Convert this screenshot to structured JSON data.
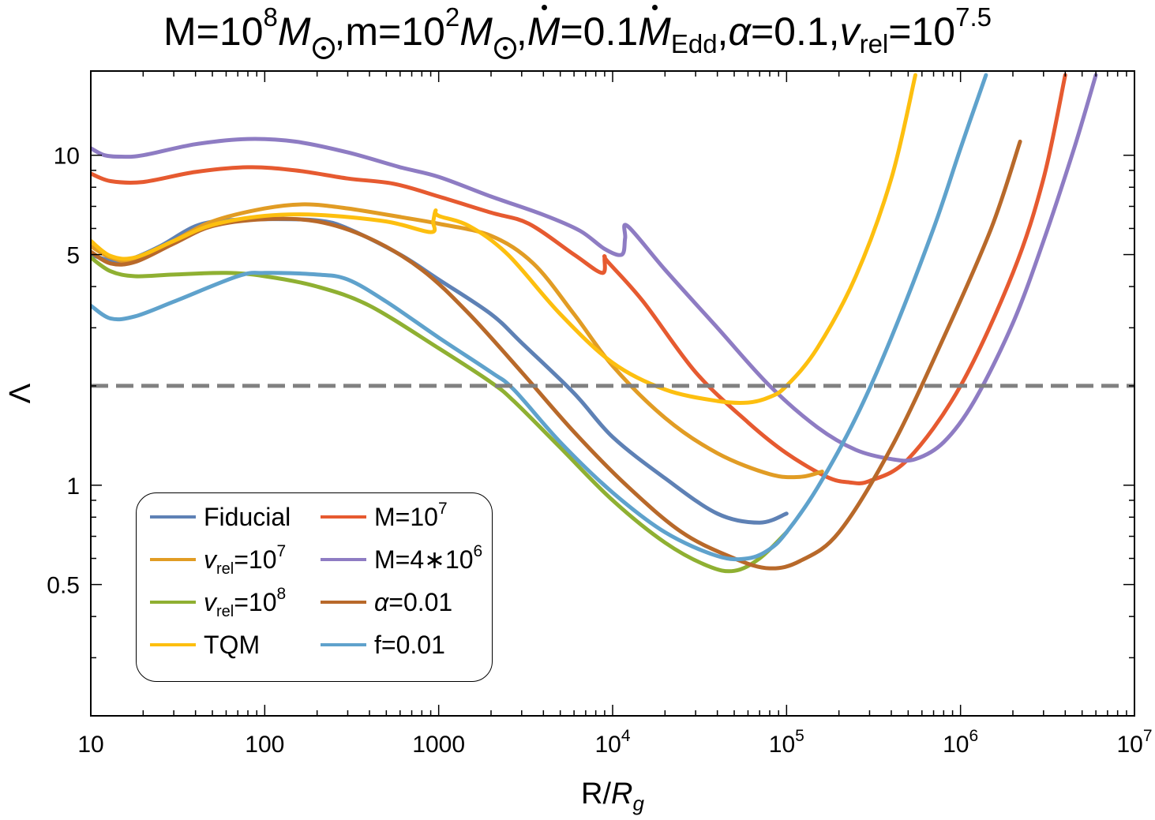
{
  "chart_data": {
    "type": "line",
    "title": "M=10^8 M_⊙, m=10^2 M_⊙, Ṁ=0.1 Ṁ_Edd, α=0.1, v_rel=10^7.5",
    "title_parts": {
      "M_label": "M=10",
      "M_exp": "8",
      "M_unit": "M",
      "m_label": ",m=10",
      "m_exp": "2",
      "m_unit": "M",
      "mdot_label": "M",
      "mdot_eq": "=0.1",
      "mdot_unit": "M",
      "mdot_sub": "Edd",
      "alpha_label": "α",
      "alpha_eq": "=0.1,",
      "v_label": "v",
      "v_sub": "rel",
      "v_eq": "=10",
      "v_exp": "7.5"
    },
    "xlabel": "R/R_g",
    "xlabel_parts": {
      "main": "R/",
      "italic": "R",
      "sub": "g"
    },
    "ylabel": "Λ",
    "xscale": "log",
    "yscale": "log",
    "xlim": [
      10,
      10000000
    ],
    "ylim": [
      0.2,
      18
    ],
    "x_ticks": [
      {
        "value": 10,
        "label": "10"
      },
      {
        "value": 100,
        "label": "100"
      },
      {
        "value": 1000,
        "label": "1000"
      },
      {
        "value": 10000,
        "base": "10",
        "exp": "4"
      },
      {
        "value": 100000,
        "base": "10",
        "exp": "5"
      },
      {
        "value": 1000000,
        "base": "10",
        "exp": "6"
      },
      {
        "value": 10000000,
        "base": "10",
        "exp": "7"
      }
    ],
    "y_ticks": [
      {
        "value": 0.5,
        "label": "0.5"
      },
      {
        "value": 1,
        "label": "1"
      },
      {
        "value": 5,
        "label": "5"
      },
      {
        "value": 10,
        "label": "10"
      }
    ],
    "reference_line": {
      "y": 2,
      "style": "dashed",
      "color": "#808080"
    },
    "grid": false,
    "legend_position": "lower-left",
    "series": [
      {
        "key": "fiducial",
        "name": "Fiducial",
        "color": "#5e81b5",
        "x": [
          10,
          13,
          17,
          25,
          40,
          60,
          100,
          200,
          300,
          600,
          1000,
          2000,
          3000,
          6000,
          10000,
          20000,
          40000,
          70000,
          100000
        ],
        "y": [
          5.0,
          4.8,
          4.85,
          5.3,
          6.1,
          6.35,
          6.4,
          6.35,
          6.0,
          5.0,
          4.2,
          3.3,
          2.7,
          1.9,
          1.4,
          1.05,
          0.82,
          0.77,
          0.82
        ]
      },
      {
        "key": "m1e7",
        "name": "M=10^7",
        "label_main": "M=10",
        "label_exp": "7",
        "color": "#e65a30",
        "x": [
          10,
          13,
          20,
          40,
          80,
          150,
          300,
          550,
          1000,
          2000,
          3300,
          6000,
          8700,
          9000,
          9400,
          15000,
          30000,
          60000,
          100000,
          170000,
          230000,
          300000,
          500000,
          1000000,
          2000000,
          3000000,
          4000000
        ],
        "y": [
          8.8,
          8.35,
          8.3,
          8.9,
          9.2,
          9.0,
          8.5,
          8.2,
          7.5,
          6.7,
          6.2,
          5.0,
          4.4,
          4.9,
          4.75,
          3.6,
          2.2,
          1.55,
          1.25,
          1.06,
          1.02,
          1.03,
          1.2,
          2.0,
          4.4,
          8.5,
          17.5
        ]
      },
      {
        "key": "vrel1e7",
        "name": "v_rel=10^7",
        "label_var": "v",
        "label_sub": "rel",
        "label_eq": "=10",
        "label_exp": "7",
        "color": "#e19c24",
        "x": [
          10,
          13,
          18,
          30,
          50,
          100,
          170,
          300,
          600,
          1000,
          2000,
          3500,
          6000,
          10000,
          20000,
          40000,
          80000,
          120000,
          160000
        ],
        "y": [
          5.3,
          4.9,
          4.8,
          5.5,
          6.3,
          6.9,
          7.1,
          6.9,
          6.5,
          6.2,
          5.7,
          4.7,
          3.3,
          2.3,
          1.6,
          1.25,
          1.08,
          1.06,
          1.1
        ]
      },
      {
        "key": "m4e6",
        "name": "M=4*10^6",
        "label_main": "M=4∗10",
        "label_exp": "6",
        "color": "#8e7cc3",
        "x": [
          10,
          12,
          15,
          20,
          40,
          80,
          150,
          300,
          600,
          1000,
          2000,
          4000,
          6500,
          9000,
          11300,
          11800,
          12200,
          20000,
          40000,
          80000,
          150000,
          250000,
          400000,
          550000,
          800000,
          1200000,
          2000000,
          3000000,
          4500000,
          6000000
        ],
        "y": [
          10.5,
          10.0,
          9.9,
          10.0,
          10.8,
          11.2,
          11.0,
          10.2,
          9.2,
          8.6,
          7.5,
          6.6,
          5.9,
          5.2,
          5.0,
          5.6,
          6.1,
          4.5,
          3.0,
          2.0,
          1.5,
          1.28,
          1.2,
          1.2,
          1.35,
          1.8,
          3.1,
          5.5,
          10.5,
          17.5
        ]
      },
      {
        "key": "vrel1e8",
        "name": "v_rel=10^8",
        "label_var": "v",
        "label_sub": "rel",
        "label_eq": "=10",
        "label_exp": "8",
        "color": "#8fb032",
        "x": [
          10,
          13,
          18,
          30,
          60,
          100,
          200,
          400,
          1000,
          2000,
          2700,
          5000,
          10000,
          20000,
          35000,
          50000,
          70000,
          100000
        ],
        "y": [
          4.9,
          4.45,
          4.3,
          4.35,
          4.4,
          4.3,
          4.0,
          3.5,
          2.6,
          2.05,
          1.8,
          1.3,
          0.9,
          0.67,
          0.57,
          0.55,
          0.6,
          0.72
        ]
      },
      {
        "key": "alpha001",
        "name": "α=0.01",
        "label_var": "α",
        "label_eq": "=0.01",
        "color": "#b8692a",
        "x": [
          10,
          13,
          18,
          30,
          50,
          100,
          200,
          400,
          800,
          1500,
          3000,
          6000,
          12000,
          25000,
          50000,
          80000,
          120000,
          200000,
          400000,
          800000,
          1500000,
          2200000
        ],
        "y": [
          5.1,
          4.7,
          4.75,
          5.4,
          6.1,
          6.4,
          6.3,
          5.6,
          4.5,
          3.3,
          2.2,
          1.45,
          1.0,
          0.72,
          0.6,
          0.56,
          0.59,
          0.72,
          1.3,
          2.8,
          6.0,
          11.0
        ]
      },
      {
        "key": "tqm",
        "name": "TQM",
        "color": "#fdbf0f",
        "x": [
          10,
          13,
          18,
          30,
          50,
          100,
          200,
          500,
          900,
          930,
          960,
          1000,
          1500,
          2500,
          5000,
          10000,
          20000,
          40000,
          60000,
          80000,
          100000,
          150000,
          250000,
          400000,
          550000
        ],
        "y": [
          5.5,
          4.95,
          4.9,
          5.5,
          6.15,
          6.55,
          6.6,
          6.3,
          5.85,
          6.3,
          6.8,
          6.55,
          6.1,
          5.0,
          3.3,
          2.35,
          1.95,
          1.8,
          1.78,
          1.85,
          2.0,
          2.6,
          4.3,
          8.5,
          17.5
        ]
      },
      {
        "key": "f001",
        "name": "f=0.01",
        "color": "#5fa2cc",
        "x": [
          10,
          13,
          18,
          30,
          70,
          100,
          200,
          300,
          500,
          1000,
          2000,
          2700,
          5000,
          10000,
          20000,
          40000,
          60000,
          80000,
          100000,
          150000,
          250000,
          400000,
          700000,
          1000000,
          1400000
        ],
        "y": [
          3.5,
          3.2,
          3.25,
          3.6,
          4.3,
          4.4,
          4.35,
          4.2,
          3.6,
          2.8,
          2.2,
          1.95,
          1.35,
          0.95,
          0.72,
          0.61,
          0.6,
          0.64,
          0.72,
          0.98,
          1.6,
          2.8,
          6.0,
          10.5,
          17.5
        ]
      }
    ],
    "legend_rows": [
      [
        "fiducial",
        "m1e7"
      ],
      [
        "vrel1e7",
        "m4e6"
      ],
      [
        "vrel1e8",
        "alpha001"
      ],
      [
        "tqm",
        "f001"
      ]
    ]
  }
}
